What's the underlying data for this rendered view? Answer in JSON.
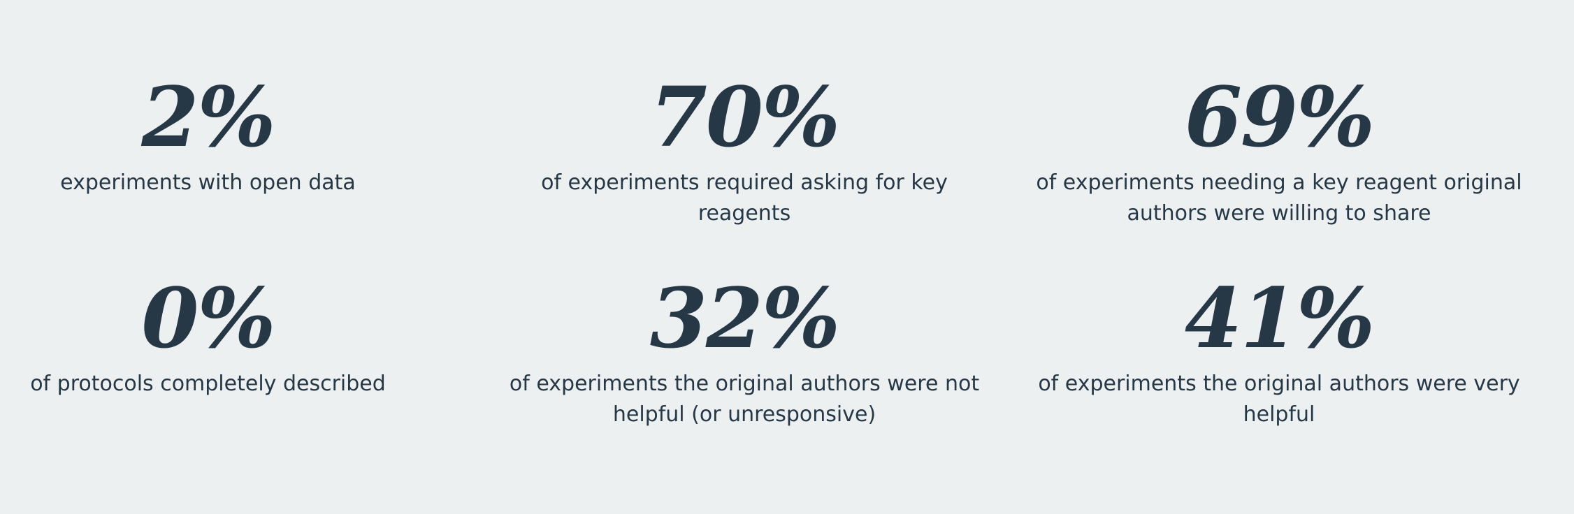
{
  "stats": [
    {
      "value": "2%",
      "label": "experiments with open data"
    },
    {
      "value": "70%",
      "label": "of experiments required asking for key reagents"
    },
    {
      "value": "69%",
      "label": "of experiments needing a key reagent original authors were willing to share"
    },
    {
      "value": "0%",
      "label": "of protocols completely described"
    },
    {
      "value": "32%",
      "label": "of experiments the original authors were not helpful (or unresponsive)"
    },
    {
      "value": "41%",
      "label": "of experiments the original authors were very helpful"
    }
  ]
}
